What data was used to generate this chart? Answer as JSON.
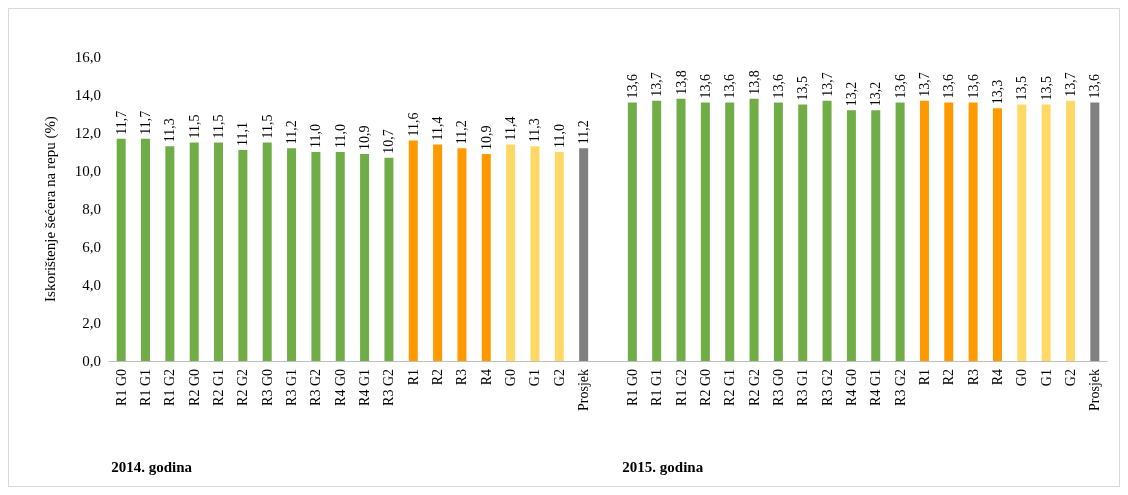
{
  "chart_data": {
    "type": "bar",
    "ylabel": "Iskorištenje šećera na repu (%)",
    "categories": [
      "R1 G0",
      "R1 G1",
      "R1 G2",
      "R2 G0",
      "R2 G1",
      "R2 G2",
      "R3 G0",
      "R3 G1",
      "R3 G2",
      "R4 G0",
      "R4 G1",
      "R3 G2",
      "R1",
      "R2",
      "R3",
      "R4",
      "G0",
      "G1",
      "G2",
      "Prosjek",
      null,
      "R1 G0",
      "R1 G1",
      "R1 G2",
      "R2 G0",
      "R2 G1",
      "R2 G2",
      "R3 G0",
      "R3 G1",
      "R3 G2",
      "R4 G0",
      "R4 G1",
      "R3 G2",
      "R1",
      "R2",
      "R3",
      "R4",
      "G0",
      "G1",
      "G2",
      "Prosjek"
    ],
    "values": [
      11.7,
      11.7,
      11.3,
      11.5,
      11.5,
      11.1,
      11.5,
      11.2,
      11.0,
      11.0,
      10.9,
      10.7,
      11.6,
      11.4,
      11.2,
      10.9,
      11.4,
      11.3,
      11.0,
      11.2,
      null,
      13.6,
      13.7,
      13.8,
      13.6,
      13.6,
      13.8,
      13.6,
      13.5,
      13.7,
      13.2,
      13.2,
      13.6,
      13.7,
      13.6,
      13.6,
      13.3,
      13.5,
      13.5,
      13.7,
      13.6
    ],
    "value_labels": [
      "11,7",
      "11,7",
      "11,3",
      "11,5",
      "11,5",
      "11,1",
      "11,5",
      "11,2",
      "11,0",
      "11,0",
      "10,9",
      "10,7",
      "11,6",
      "11,4",
      "11,2",
      "10,9",
      "11,4",
      "11,3",
      "11,0",
      "11,2",
      null,
      "13,6",
      "13,7",
      "13,8",
      "13,6",
      "13,6",
      "13,8",
      "13,6",
      "13,5",
      "13,7",
      "13,2",
      "13,2",
      "13,6",
      "13,7",
      "13,6",
      "13,6",
      "13,3",
      "13,5",
      "13,5",
      "13,7",
      "13,6"
    ],
    "colors": [
      "#70ad47",
      "#70ad47",
      "#70ad47",
      "#70ad47",
      "#70ad47",
      "#70ad47",
      "#70ad47",
      "#70ad47",
      "#70ad47",
      "#70ad47",
      "#70ad47",
      "#70ad47",
      "#ff9900",
      "#ff9900",
      "#ff9900",
      "#ff9900",
      "#ffd966",
      "#ffd966",
      "#ffd966",
      "#808080",
      null,
      "#70ad47",
      "#70ad47",
      "#70ad47",
      "#70ad47",
      "#70ad47",
      "#70ad47",
      "#70ad47",
      "#70ad47",
      "#70ad47",
      "#70ad47",
      "#70ad47",
      "#70ad47",
      "#ff9900",
      "#ff9900",
      "#ff9900",
      "#ff9900",
      "#ffd966",
      "#ffd966",
      "#ffd966",
      "#808080"
    ],
    "ylim": [
      0,
      16
    ],
    "yticks": [
      {
        "value": 0,
        "label": "0,0"
      },
      {
        "value": 2,
        "label": "2,0"
      },
      {
        "value": 4,
        "label": "4,0"
      },
      {
        "value": 6,
        "label": "6,0"
      },
      {
        "value": 8,
        "label": "8,0"
      },
      {
        "value": 10,
        "label": "10,0"
      },
      {
        "value": 12,
        "label": "12,0"
      },
      {
        "value": 14,
        "label": "14,0"
      },
      {
        "value": 16,
        "label": "16,0"
      }
    ],
    "annotations": [
      "2014. godina",
      "2015. godina"
    ],
    "grid": false
  }
}
